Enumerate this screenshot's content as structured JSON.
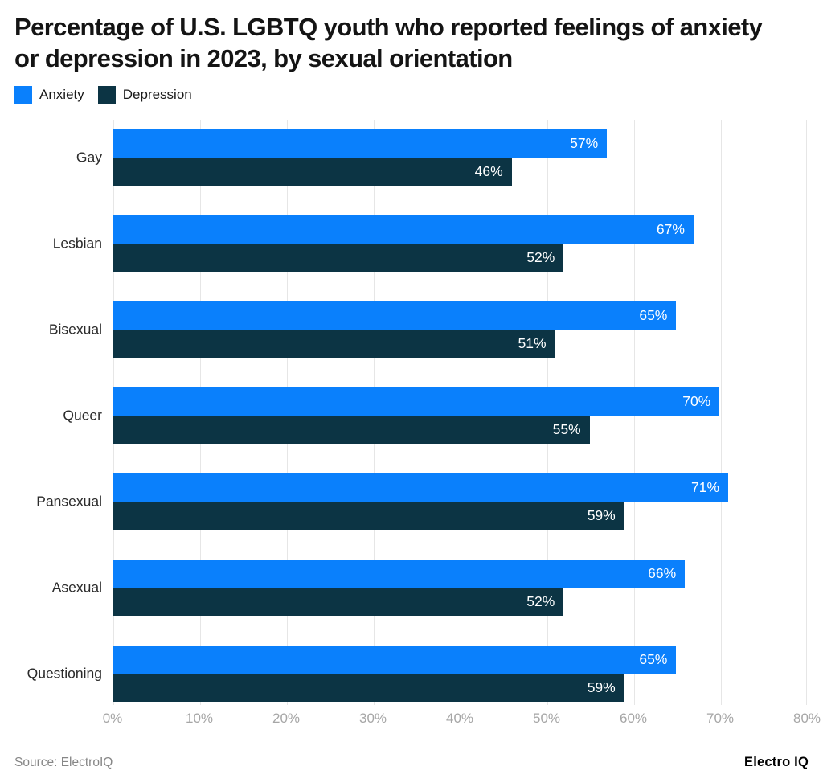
{
  "title": "Percentage of U.S. LGBTQ youth who reported feelings of anxiety or depression in 2023, by sexual orientation",
  "legend": [
    {
      "key": "anxiety",
      "label": "Anxiety"
    },
    {
      "key": "depression",
      "label": "Depression"
    }
  ],
  "colors": {
    "anxiety": "#0a80fc",
    "depression": "#0c3444",
    "grid": "#e6e6e6",
    "axis_line": "#4a4a4a",
    "tick_text": "#a6a6a6",
    "category_text": "#2b2b2b",
    "value_text": "#ffffff"
  },
  "chart_data": {
    "type": "bar",
    "orientation": "horizontal",
    "title": "Percentage of U.S. LGBTQ youth who reported feelings of anxiety or depression in 2023, by sexual orientation",
    "categories": [
      "Gay",
      "Lesbian",
      "Bisexual",
      "Queer",
      "Pansexual",
      "Asexual",
      "Questioning"
    ],
    "series": [
      {
        "name": "Anxiety",
        "key": "anxiety",
        "values": [
          57,
          67,
          65,
          70,
          71,
          66,
          65
        ]
      },
      {
        "name": "Depression",
        "key": "depression",
        "values": [
          46,
          52,
          51,
          55,
          59,
          52,
          59
        ]
      }
    ],
    "value_suffix": "%",
    "xlabel": "",
    "ylabel": "",
    "xlim": [
      0,
      80
    ],
    "xticks": [
      "0%",
      "10%",
      "20%",
      "30%",
      "40%",
      "50%",
      "60%",
      "70%",
      "80%"
    ],
    "grid": "vertical",
    "legend_position": "top-left",
    "value_labels": "inside-end"
  },
  "footer": {
    "source": "Source: ElectroIQ",
    "brand": "Electro IQ"
  }
}
